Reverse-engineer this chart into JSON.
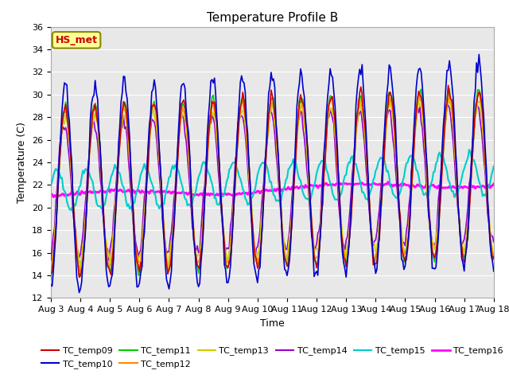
{
  "title": "Temperature Profile B",
  "xlabel": "Time",
  "ylabel": "Temperature (C)",
  "ylim": [
    12,
    36
  ],
  "yticks": [
    12,
    14,
    16,
    18,
    20,
    22,
    24,
    26,
    28,
    30,
    32,
    34,
    36
  ],
  "x_labels": [
    "Aug 3",
    "Aug 4",
    "Aug 5",
    "Aug 6",
    "Aug 7",
    "Aug 8",
    "Aug 9",
    "Aug 10",
    "Aug 11",
    "Aug 12",
    "Aug 13",
    "Aug 14",
    "Aug 15",
    "Aug 16",
    "Aug 17",
    "Aug 18"
  ],
  "series": {
    "TC_temp09": {
      "color": "#cc0000",
      "lw": 1.2
    },
    "TC_temp10": {
      "color": "#0000cc",
      "lw": 1.2
    },
    "TC_temp11": {
      "color": "#00cc00",
      "lw": 1.2
    },
    "TC_temp12": {
      "color": "#ff8800",
      "lw": 1.2
    },
    "TC_temp13": {
      "color": "#cccc00",
      "lw": 1.2
    },
    "TC_temp14": {
      "color": "#9900cc",
      "lw": 1.2
    },
    "TC_temp15": {
      "color": "#00cccc",
      "lw": 1.5
    },
    "TC_temp16": {
      "color": "#ff00ff",
      "lw": 2.0
    }
  },
  "annotation_text": "HS_met",
  "annotation_color": "#cc0000",
  "annotation_bg": "#ffff99",
  "annotation_border": "#888800",
  "bg_color": "#e8e8e8",
  "title_fontsize": 11,
  "axis_fontsize": 8,
  "label_fontsize": 9
}
